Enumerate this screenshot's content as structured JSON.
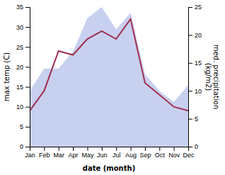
{
  "chart_data": {
    "type": "line",
    "categories": [
      "Jan",
      "Feb",
      "Mar",
      "Apr",
      "May",
      "Jun",
      "Jul",
      "Aug",
      "Sep",
      "Oct",
      "Nov",
      "Dec"
    ],
    "x_label": "date (month)",
    "y_label": "max temp (C)",
    "y2_label": "med. precipitation\n(kg/m2)",
    "series": [
      {
        "type": "area",
        "axis": "y2",
        "color": "#c8d0f0",
        "values": [
          10,
          14,
          14,
          17,
          23,
          25,
          21,
          24,
          13,
          10,
          8,
          11
        ]
      },
      {
        "type": "line",
        "color": "#a03050",
        "values": [
          9,
          14,
          24,
          23,
          27,
          29,
          27,
          32,
          16,
          13,
          10,
          9
        ]
      }
    ],
    "ylim": [
      0,
      35
    ],
    "yticks": [
      0,
      5,
      10,
      15,
      20,
      25,
      30,
      35
    ],
    "y2lim": [
      0,
      25
    ],
    "y2ticks": [
      0,
      5,
      10,
      15,
      20,
      25
    ],
    "grid": false
  }
}
